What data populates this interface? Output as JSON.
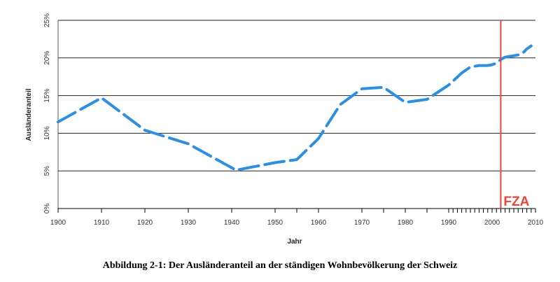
{
  "chart_data": {
    "type": "line",
    "title": "",
    "xlabel": "Jahr",
    "ylabel": "Ausländeranteil",
    "xlim": [
      1900,
      2010
    ],
    "ylim": [
      0,
      25
    ],
    "x_ticks": [
      "1900",
      "1910",
      "1920",
      "1930",
      "1940",
      "1950",
      "1960",
      "1970",
      "1980",
      "1990",
      "2000",
      "2010"
    ],
    "y_ticks": [
      "0%",
      "5%",
      "10%",
      "15%",
      "20%",
      "25%"
    ],
    "grid": "horizontal",
    "series": [
      {
        "line_style": "dashed",
        "color": "#2e8ee0",
        "x": [
          1900,
          1910,
          1920,
          1930,
          1941,
          1950,
          1955,
          1960,
          1965,
          1970,
          1975,
          1980,
          1985,
          1990,
          1993,
          1995,
          1997,
          1999,
          2000,
          2001,
          2002,
          2003,
          2004,
          2005,
          2006,
          2007,
          2008,
          2009
        ],
        "y": [
          11.5,
          14.7,
          10.4,
          8.6,
          5.1,
          6.1,
          6.5,
          9.3,
          13.8,
          15.9,
          16.1,
          14.1,
          14.5,
          16.4,
          18.0,
          18.8,
          19.0,
          19.0,
          19.1,
          19.3,
          19.8,
          20.1,
          20.2,
          20.3,
          20.4,
          20.6,
          21.2,
          21.6
        ]
      }
    ],
    "annotations": [
      {
        "label": "FZA",
        "x": 2002,
        "color": "#e8473a"
      }
    ],
    "caption": "Abbildung 2-1: Der Ausländeranteil an der ständigen Wohnbevölkerung der Schweiz"
  }
}
